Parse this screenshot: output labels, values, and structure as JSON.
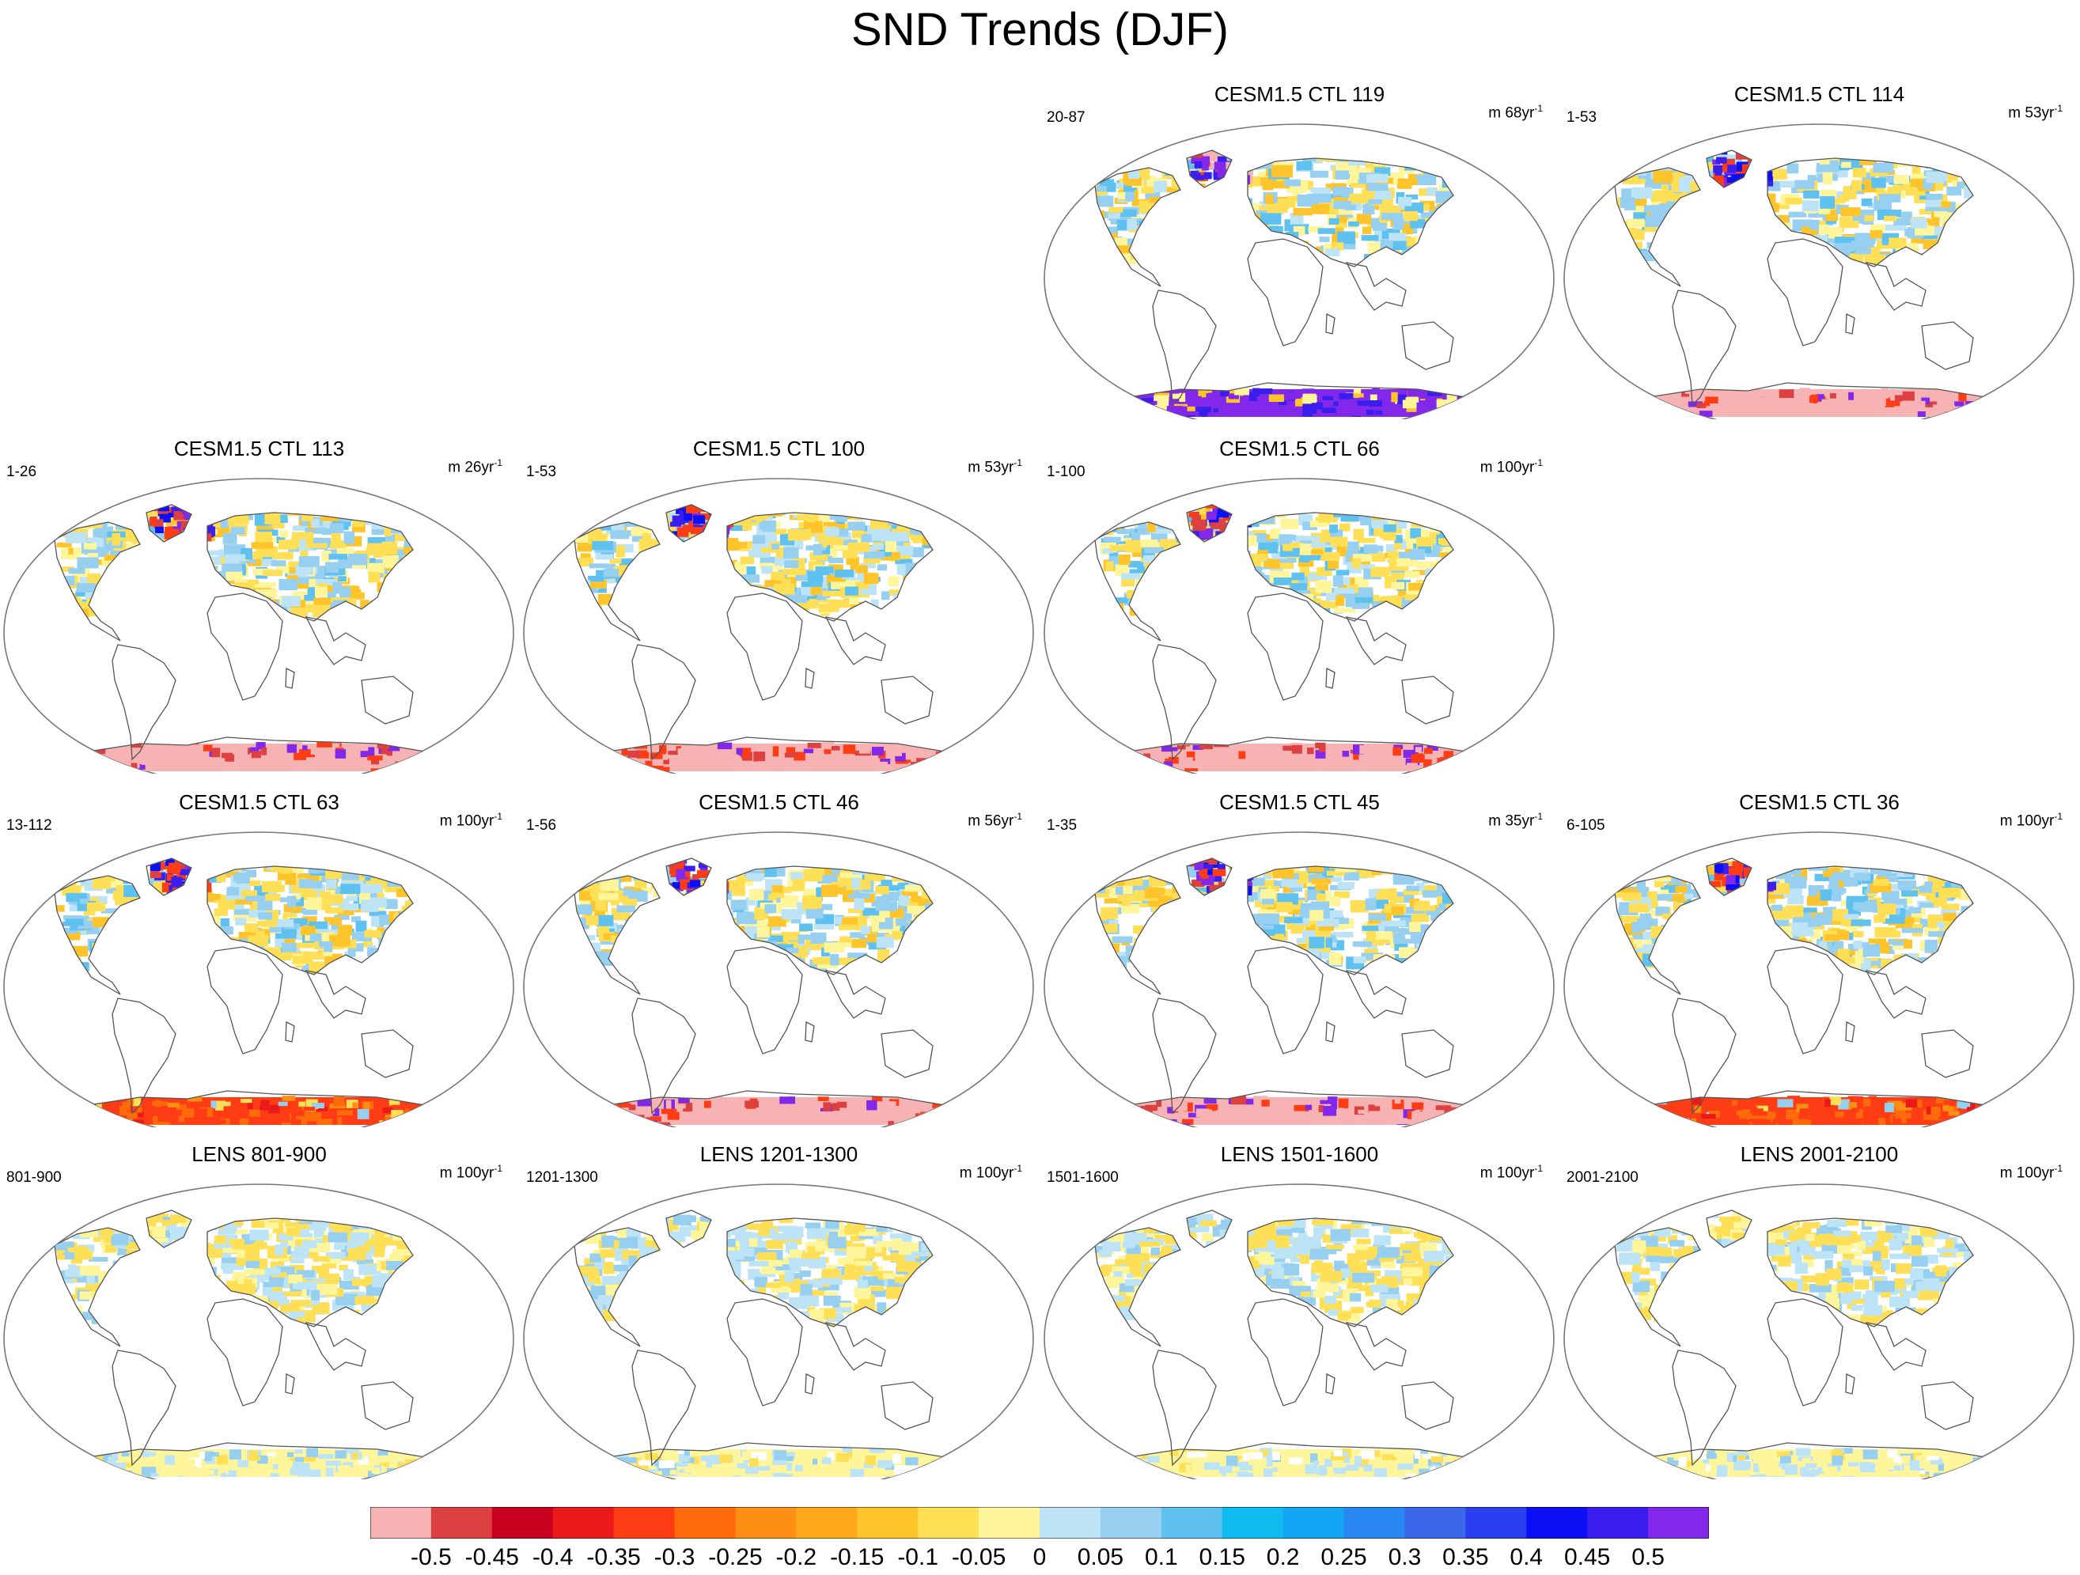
{
  "title": "SND Trends (DJF)",
  "colors": {
    "land_outline": "#555555",
    "frame": "#777777"
  },
  "panels": [
    {
      "title": "CESM1.5 CTL 119",
      "range": "20-87",
      "m_label": "m 68yr",
      "m_sup": "-1",
      "pattern": "strong_pos"
    },
    {
      "title": "CESM1.5 CTL 114",
      "range": "1-53",
      "m_label": "m 53yr",
      "m_sup": "-1",
      "pattern": "strong_neg"
    },
    {
      "title": "CESM1.5 CTL 113",
      "range": "1-26",
      "m_label": "m 26yr",
      "m_sup": "-1",
      "pattern": "strong_neg"
    },
    {
      "title": "CESM1.5 CTL 100",
      "range": "1-53",
      "m_label": "m 53yr",
      "m_sup": "-1",
      "pattern": "strong_neg"
    },
    {
      "title": "CESM1.5 CTL 66",
      "range": "1-100",
      "m_label": "m 100yr",
      "m_sup": "-1",
      "pattern": "strong_neg"
    },
    {
      "title": "CESM1.5 CTL 63",
      "range": "13-112",
      "m_label": "m 100yr",
      "m_sup": "-1",
      "pattern": "moderate_neg"
    },
    {
      "title": "CESM1.5 CTL 46",
      "range": "1-56",
      "m_label": "m 56yr",
      "m_sup": "-1",
      "pattern": "strong_neg"
    },
    {
      "title": "CESM1.5 CTL 45",
      "range": "1-35",
      "m_label": "m 35yr",
      "m_sup": "-1",
      "pattern": "strong_neg"
    },
    {
      "title": "CESM1.5 CTL 36",
      "range": "6-105",
      "m_label": "m 100yr",
      "m_sup": "-1",
      "pattern": "moderate_neg"
    },
    {
      "title": "LENS 801-900",
      "range": "801-900",
      "m_label": "m 100yr",
      "m_sup": "-1",
      "pattern": "weak"
    },
    {
      "title": "LENS 1201-1300",
      "range": "1201-1300",
      "m_label": "m 100yr",
      "m_sup": "-1",
      "pattern": "weak"
    },
    {
      "title": "LENS 1501-1600",
      "range": "1501-1600",
      "m_label": "m 100yr",
      "m_sup": "-1",
      "pattern": "weak"
    },
    {
      "title": "LENS 2001-2100",
      "range": "2001-2100",
      "m_label": "m 100yr",
      "m_sup": "-1",
      "pattern": "weak"
    }
  ],
  "colorbar": {
    "colors": [
      "#f7b3b3",
      "#dd4040",
      "#c8001e",
      "#eb1a1a",
      "#ff3c14",
      "#ff6a0a",
      "#ff8f14",
      "#ffa91a",
      "#ffc42a",
      "#ffdf55",
      "#fff59a",
      "#bde3f7",
      "#96cff0",
      "#5ec1f0",
      "#0fbcef",
      "#14a5f5",
      "#2887f0",
      "#3a68e8",
      "#2a3ff0",
      "#0a0ff5",
      "#3a1ef0",
      "#8228ea"
    ],
    "labels": [
      "-0.5",
      "-0.45",
      "-0.4",
      "-0.35",
      "-0.3",
      "-0.25",
      "-0.2",
      "-0.15",
      "-0.1",
      "-0.05",
      "0",
      "0.05",
      "0.1",
      "0.15",
      "0.2",
      "0.25",
      "0.3",
      "0.35",
      "0.4",
      "0.45",
      "0.5"
    ]
  }
}
